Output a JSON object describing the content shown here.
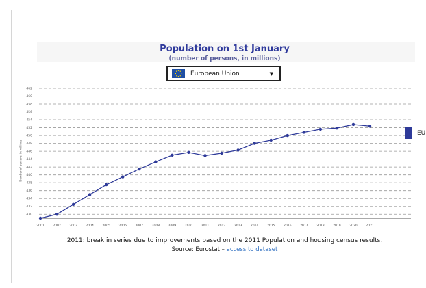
{
  "header": {
    "title": "Population on 1st January",
    "subtitle": "(number of persons, in millions)"
  },
  "selector": {
    "value": "European Union",
    "flag_icon": "eu-flag-icon",
    "caret_icon": "caret-down-icon"
  },
  "legend": {
    "label": "EU",
    "color": "#2e3a99"
  },
  "footer": {
    "note": "2011: break in series due to improvements based on the 2011 Population and housing census results.",
    "source_prefix": "Source: Eurostat –",
    "source_link": "access to dataset"
  },
  "chart_data": {
    "type": "line",
    "title": "Population on 1st January",
    "subtitle": "(number of persons, in millions)",
    "ylabel": "Number of persons, in millions",
    "x": [
      "2001",
      "2002",
      "2003",
      "2004",
      "2005",
      "2006",
      "2007",
      "2008",
      "2009",
      "2010",
      "2011",
      "2012",
      "2013",
      "2014",
      "2015",
      "2016",
      "2017",
      "2018",
      "2019",
      "2020",
      "2021"
    ],
    "series": [
      {
        "name": "EU",
        "color": "#2e3a99",
        "values": [
          429,
          430,
          432.5,
          435,
          437.5,
          439.5,
          441.5,
          443.3,
          445,
          445.7,
          444.9,
          445.5,
          446.3,
          448,
          448.8,
          450,
          450.8,
          451.6,
          451.9,
          452.8,
          452.4
        ]
      }
    ],
    "ylim": [
      429,
      462
    ],
    "yticks": [
      430,
      432,
      434,
      436,
      438,
      440,
      442,
      444,
      446,
      448,
      450,
      452,
      454,
      456,
      458,
      460,
      462
    ],
    "grid": true,
    "legend_position": "right"
  }
}
